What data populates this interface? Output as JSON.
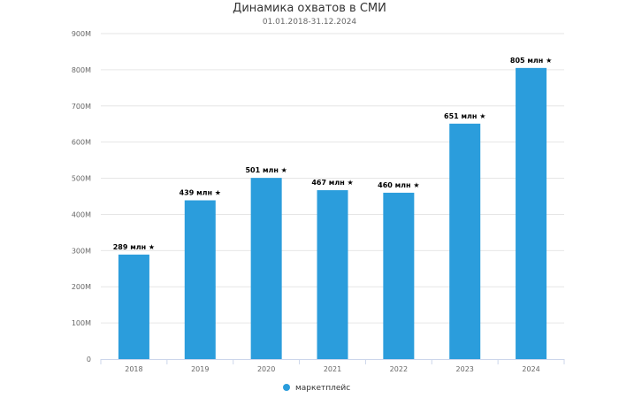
{
  "chart_data": {
    "type": "bar",
    "title": "Динамика охватов в СМИ",
    "subtitle": "01.01.2018-31.12.2024",
    "categories": [
      "2018",
      "2019",
      "2020",
      "2021",
      "2022",
      "2023",
      "2024"
    ],
    "series": [
      {
        "name": "маркетплейс",
        "values": [
          289,
          439,
          501,
          467,
          460,
          651,
          805
        ],
        "labels": [
          "289 млн ★",
          "439 млн ★",
          "501 млн ★",
          "467 млн ★",
          "460 млн ★",
          "651 млн ★",
          "805 млн ★"
        ],
        "color": "#2b9ddc"
      }
    ],
    "ylim": [
      0,
      900
    ],
    "yticks": [
      0,
      100,
      200,
      300,
      400,
      500,
      600,
      700,
      800,
      900
    ],
    "ytick_labels": [
      "0",
      "100M",
      "200M",
      "300M",
      "400M",
      "500M",
      "600M",
      "700M",
      "800M",
      "900M"
    ],
    "xlabel": "",
    "ylabel": "",
    "grid": true,
    "legend": "bottom-center"
  }
}
